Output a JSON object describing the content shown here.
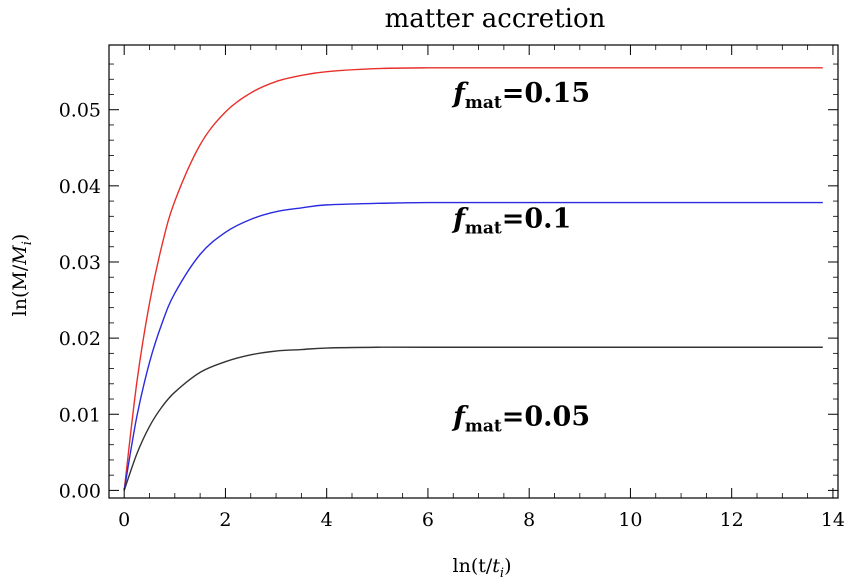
{
  "chart_data": {
    "type": "line",
    "title": "matter accretion",
    "xlabel": {
      "base": "ln(t/",
      "var": "t",
      "sub": "i",
      "close": ")"
    },
    "ylabel": {
      "base": "ln(M/",
      "var": "M",
      "sub": "i",
      "close": ")"
    },
    "xlim": [
      -0.3,
      14.1
    ],
    "ylim": [
      -0.001,
      0.0585
    ],
    "xticks": [
      0,
      2,
      4,
      6,
      8,
      10,
      12,
      14
    ],
    "xtick_labels": [
      "0",
      "2",
      "4",
      "6",
      "8",
      "10",
      "12",
      "14"
    ],
    "yticks": [
      0.0,
      0.01,
      0.02,
      0.03,
      0.04,
      0.05
    ],
    "ytick_labels": [
      "0.00",
      "0.01",
      "0.02",
      "0.03",
      "0.04",
      "0.05"
    ],
    "grid": false,
    "series": [
      {
        "color": "#e8302a",
        "x": [
          0,
          0.25,
          0.5,
          0.75,
          1,
          1.5,
          2,
          2.5,
          3,
          3.5,
          4,
          5,
          6,
          8,
          10,
          12,
          13.8
        ],
        "y": [
          0,
          0.0142,
          0.0246,
          0.0323,
          0.038,
          0.0454,
          0.0497,
          0.0522,
          0.0537,
          0.0545,
          0.055,
          0.0554,
          0.0555,
          0.0555,
          0.0555,
          0.0555,
          0.0555
        ]
      },
      {
        "color": "#2a2ae0",
        "x": [
          0,
          0.25,
          0.5,
          0.75,
          1,
          1.5,
          2,
          2.5,
          3,
          3.5,
          4,
          5,
          6,
          8,
          10,
          12,
          13.8
        ],
        "y": [
          0,
          0.0097,
          0.0168,
          0.022,
          0.0259,
          0.031,
          0.0339,
          0.0356,
          0.0366,
          0.0371,
          0.0375,
          0.0377,
          0.0378,
          0.0378,
          0.0378,
          0.0378,
          0.0378
        ]
      },
      {
        "color": "#333333",
        "x": [
          0,
          0.25,
          0.5,
          0.75,
          1,
          1.5,
          2,
          2.5,
          3,
          3.5,
          4,
          5,
          6,
          8,
          10,
          12,
          13.8
        ],
        "y": [
          0,
          0.0048,
          0.0084,
          0.011,
          0.0129,
          0.0155,
          0.0169,
          0.0178,
          0.0183,
          0.0185,
          0.0187,
          0.0188,
          0.0188,
          0.0188,
          0.0188,
          0.0188,
          0.0188
        ]
      }
    ],
    "annotations": [
      {
        "main": "f",
        "sub": "mat",
        "value": "=0.15",
        "x": 6.5,
        "y": 0.051
      },
      {
        "main": "f",
        "sub": "mat",
        "value": "=0.1",
        "x": 6.5,
        "y": 0.0345
      },
      {
        "main": "f",
        "sub": "mat",
        "value": "=0.05",
        "x": 6.5,
        "y": 0.0085
      }
    ]
  }
}
